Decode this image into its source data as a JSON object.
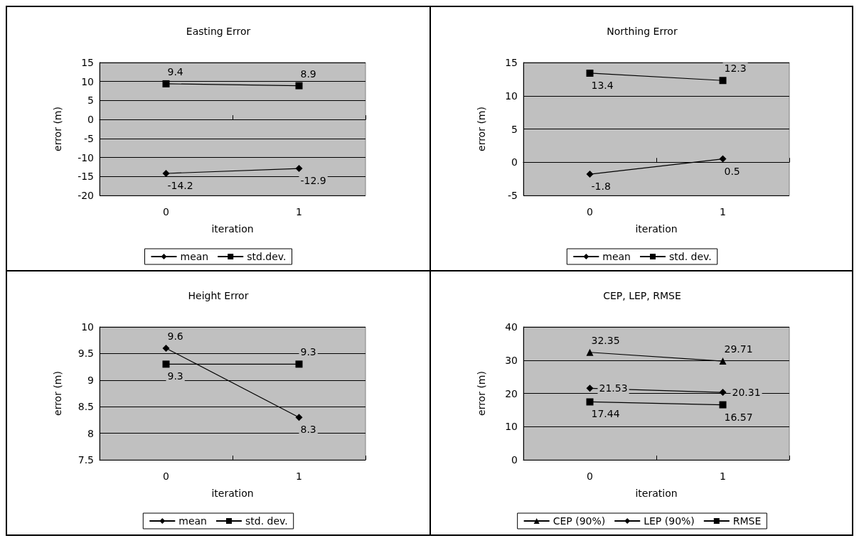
{
  "chart_data": [
    {
      "type": "line",
      "title": "Easting Error",
      "xlabel": "iteration",
      "ylabel": "error (m)",
      "categories": [
        "0",
        "1"
      ],
      "ylim": [
        -20,
        15
      ],
      "yticks": [
        -20,
        -15,
        -10,
        -5,
        0,
        5,
        10,
        15
      ],
      "grid": "y",
      "legend": "bottom",
      "data_labels": true,
      "line_style": "solid",
      "series": [
        {
          "name": "mean",
          "color": "#000000",
          "marker": "diamond",
          "values": [
            -14.2,
            -12.9
          ]
        },
        {
          "name": "std.dev.",
          "color": "#000000",
          "marker": "square",
          "values": [
            9.4,
            8.9
          ]
        }
      ]
    },
    {
      "type": "line",
      "title": "Northing Error",
      "xlabel": "iteration",
      "ylabel": "error (m)",
      "categories": [
        "0",
        "1"
      ],
      "ylim": [
        -5,
        15
      ],
      "yticks": [
        -5,
        0,
        5,
        10,
        15
      ],
      "grid": "y",
      "legend": "bottom",
      "data_labels": true,
      "line_style": "solid",
      "series": [
        {
          "name": "mean",
          "color": "#000000",
          "marker": "diamond",
          "values": [
            -1.8,
            0.5
          ]
        },
        {
          "name": "std. dev.",
          "color": "#000000",
          "marker": "square",
          "values": [
            13.4,
            12.3
          ]
        }
      ]
    },
    {
      "type": "line",
      "title": "Height Error",
      "xlabel": "iteration",
      "ylabel": "error (m)",
      "categories": [
        "0",
        "1"
      ],
      "ylim": [
        7.5,
        10
      ],
      "yticks": [
        7.5,
        8,
        8.5,
        9,
        9.5,
        10
      ],
      "grid": "y",
      "legend": "bottom",
      "data_labels": true,
      "line_style": "solid",
      "series": [
        {
          "name": "mean",
          "color": "#000000",
          "marker": "diamond",
          "values": [
            9.6,
            8.3
          ]
        },
        {
          "name": "std. dev.",
          "color": "#000000",
          "marker": "square",
          "values": [
            9.3,
            9.3
          ]
        }
      ]
    },
    {
      "type": "line",
      "title": "CEP, LEP, RMSE",
      "xlabel": "iteration",
      "ylabel": "error (m)",
      "categories": [
        "0",
        "1"
      ],
      "ylim": [
        0,
        40
      ],
      "yticks": [
        0,
        10,
        20,
        30,
        40
      ],
      "grid": "y",
      "legend": "bottom",
      "data_labels": true,
      "line_style": "solid",
      "series": [
        {
          "name": "CEP (90%)",
          "color": "#000000",
          "marker": "triangle",
          "values": [
            32.35,
            29.71
          ]
        },
        {
          "name": "LEP (90%)",
          "color": "#000000",
          "marker": "diamond",
          "values": [
            21.53,
            20.31
          ]
        },
        {
          "name": "RMSE",
          "color": "#000000",
          "marker": "square",
          "values": [
            17.44,
            16.57
          ]
        }
      ]
    }
  ]
}
